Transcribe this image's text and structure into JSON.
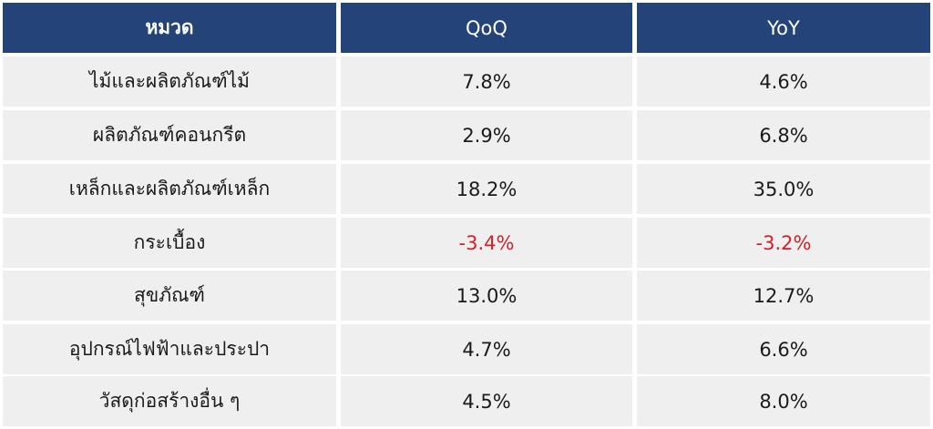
{
  "table": {
    "columns": [
      "หมวด",
      "QoQ",
      "YoY"
    ],
    "rows": [
      {
        "category": "ไม้และผลิตภัณฑ์ไม้",
        "qoq": "7.8%",
        "yoy": "4.6%"
      },
      {
        "category": "ผลิตภัณฑ์คอนกรีต",
        "qoq": "2.9%",
        "yoy": "6.8%"
      },
      {
        "category": "เหล็กและผลิตภัณฑ์เหล็ก",
        "qoq": "18.2%",
        "yoy": "35.0%"
      },
      {
        "category": "กระเบื้อง",
        "qoq": "-3.4%",
        "yoy": "-3.2%"
      },
      {
        "category": "สุขภัณฑ์",
        "qoq": "13.0%",
        "yoy": "12.7%"
      },
      {
        "category": "อุปกรณ์ไฟฟ้าและประปา",
        "qoq": "4.7%",
        "yoy": "6.6%"
      },
      {
        "category": "วัสดุก่อสร้างอื่น ๆ",
        "qoq": "4.5%",
        "yoy": "8.0%"
      }
    ]
  },
  "colors": {
    "header_bg": "#244379",
    "header_text": "#ffffff",
    "row_bg": "#efefef",
    "negative_text": "#cc2229"
  }
}
